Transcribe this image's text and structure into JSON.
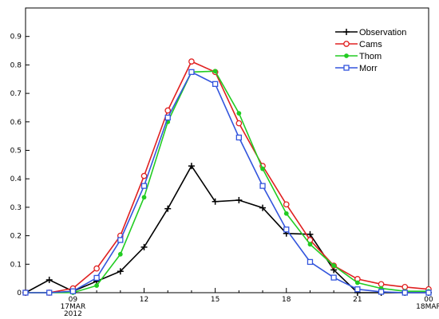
{
  "chart_data": {
    "type": "line",
    "title": "",
    "xlabel": "",
    "ylabel": "",
    "x": [
      "07:00",
      "08:00",
      "09:00",
      "10:00",
      "11:00",
      "12:00",
      "13:00",
      "14:00",
      "15:00",
      "16:00",
      "17:00",
      "18:00",
      "19:00",
      "20:00",
      "21:00",
      "22:00",
      "23:00",
      "00:00"
    ],
    "xlim_hours": [
      7,
      24
    ],
    "ylim": [
      0,
      1.0
    ],
    "grid": false,
    "legend_position": "top-right",
    "x_ticks": [
      {
        "hour": 9,
        "lines": [
          "09",
          "17MAR",
          "2012"
        ]
      },
      {
        "hour": 12,
        "lines": [
          "12"
        ]
      },
      {
        "hour": 15,
        "lines": [
          "15"
        ]
      },
      {
        "hour": 18,
        "lines": [
          "18"
        ]
      },
      {
        "hour": 21,
        "lines": [
          "21"
        ]
      },
      {
        "hour": 24,
        "lines": [
          "00",
          "18MAR"
        ]
      }
    ],
    "y_ticks": [
      "0",
      "0.1",
      "0.2",
      "0.3",
      "0.4",
      "0.5",
      "0.6",
      "0.7",
      "0.8",
      "0.9"
    ],
    "series": [
      {
        "name": "Observation",
        "color": "#000000",
        "marker": "plus",
        "values": [
          0.0,
          0.045,
          0.005,
          0.04,
          0.075,
          0.16,
          0.295,
          0.445,
          0.32,
          0.325,
          0.298,
          0.208,
          0.205,
          0.08,
          0.0,
          0.0,
          0.0,
          0.0
        ]
      },
      {
        "name": "Cams",
        "color": "#e02020",
        "marker": "circle",
        "values": [
          0.0,
          0.0,
          0.015,
          0.085,
          0.2,
          0.41,
          0.64,
          0.812,
          0.775,
          0.595,
          0.445,
          0.31,
          0.185,
          0.095,
          0.048,
          0.03,
          0.02,
          0.012
        ]
      },
      {
        "name": "Thom",
        "color": "#22cc22",
        "marker": "dot",
        "values": [
          0.0,
          0.0,
          0.0,
          0.025,
          0.135,
          0.335,
          0.6,
          0.775,
          0.778,
          0.63,
          0.435,
          0.278,
          0.17,
          0.095,
          0.035,
          0.015,
          0.005,
          0.005
        ]
      },
      {
        "name": "Morr",
        "color": "#3355dd",
        "marker": "square",
        "values": [
          0.0,
          0.0,
          0.005,
          0.052,
          0.185,
          0.375,
          0.615,
          0.775,
          0.733,
          0.545,
          0.375,
          0.222,
          0.108,
          0.053,
          0.012,
          0.003,
          0.0,
          0.0
        ]
      }
    ]
  }
}
